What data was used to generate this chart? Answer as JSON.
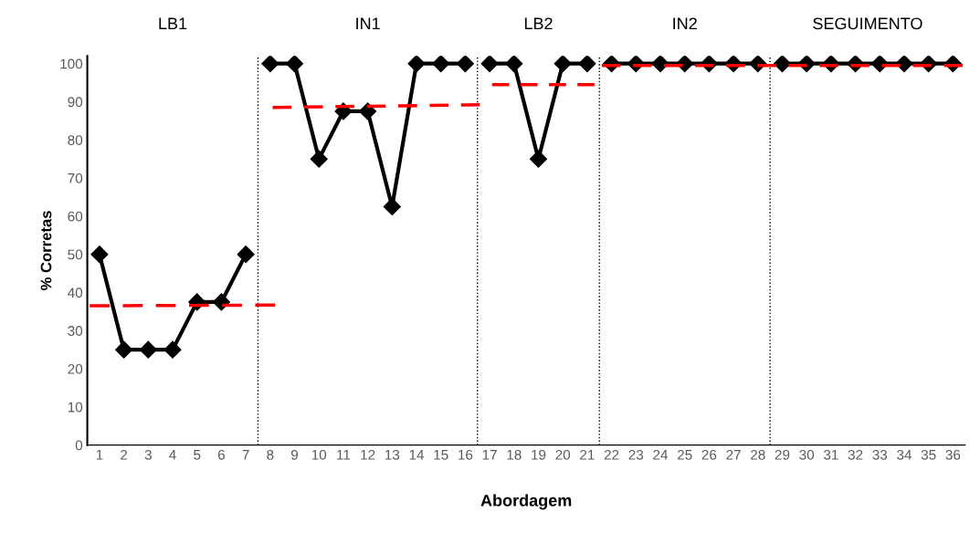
{
  "chart_data": {
    "type": "line",
    "xlabel": "Abordagem",
    "ylabel": "% Corretas",
    "xlim": [
      0.5,
      36.5
    ],
    "xticks": [
      1,
      2,
      3,
      4,
      5,
      6,
      7,
      8,
      9,
      10,
      11,
      12,
      13,
      14,
      15,
      16,
      17,
      18,
      19,
      20,
      21,
      22,
      23,
      24,
      25,
      26,
      27,
      28,
      29,
      30,
      31,
      32,
      33,
      34,
      35,
      36
    ],
    "ylim": [
      0,
      102
    ],
    "yticks": [
      0,
      10,
      20,
      30,
      40,
      50,
      60,
      70,
      80,
      90,
      100
    ],
    "marker": "diamond",
    "grid": false,
    "legend": false,
    "series": [
      {
        "color": "#000000",
        "x": [
          1,
          2,
          3,
          4,
          5,
          6,
          7
        ],
        "values": [
          50,
          25,
          25,
          25,
          37.5,
          37.5,
          50
        ]
      },
      {
        "color": "#000000",
        "x": [
          8,
          9,
          10,
          11,
          12,
          13,
          14,
          15,
          16
        ],
        "values": [
          100,
          100,
          75,
          87.5,
          87.5,
          62.5,
          100,
          100,
          100
        ]
      },
      {
        "color": "#000000",
        "x": [
          17,
          18,
          19,
          20,
          21
        ],
        "values": [
          100,
          100,
          75,
          100,
          100
        ]
      },
      {
        "color": "#000000",
        "x": [
          22,
          23,
          24,
          25,
          26,
          27,
          28
        ],
        "values": [
          100,
          100,
          100,
          100,
          100,
          100,
          100
        ]
      },
      {
        "color": "#000000",
        "x": [
          29,
          30,
          31,
          32,
          33,
          34,
          35,
          36
        ],
        "values": [
          100,
          100,
          100,
          100,
          100,
          100,
          100,
          100
        ]
      },
      {
        "type": "line",
        "marker": "none",
        "line_style": "dashed",
        "color": "#ff0000",
        "x": [
          0.6,
          8.2
        ],
        "values": [
          36.5,
          36.7
        ]
      },
      {
        "type": "line",
        "marker": "none",
        "line_style": "dashed",
        "color": "#ff0000",
        "x": [
          8.1,
          16.6
        ],
        "values": [
          88.5,
          89.2
        ]
      },
      {
        "type": "line",
        "marker": "none",
        "line_style": "dashed",
        "color": "#ff0000",
        "x": [
          17.1,
          21.3
        ],
        "values": [
          94.5,
          94.5
        ]
      },
      {
        "type": "line",
        "marker": "none",
        "line_style": "dashed",
        "color": "#ff0000",
        "x": [
          21.6,
          36.4
        ],
        "values": [
          99.5,
          99.5
        ]
      }
    ],
    "ref_lines": [
      {
        "axis": "x",
        "value": 7.5,
        "color": "#000000",
        "line_style": "dotted"
      },
      {
        "axis": "x",
        "value": 16.5,
        "color": "#000000",
        "line_style": "dotted"
      },
      {
        "axis": "x",
        "value": 21.5,
        "color": "#000000",
        "line_style": "dotted"
      },
      {
        "axis": "x",
        "value": 28.5,
        "color": "#000000",
        "line_style": "dotted"
      }
    ],
    "annotations": [
      "LB1",
      "IN1",
      "LB2",
      "IN2",
      "SEGUIMENTO"
    ]
  }
}
